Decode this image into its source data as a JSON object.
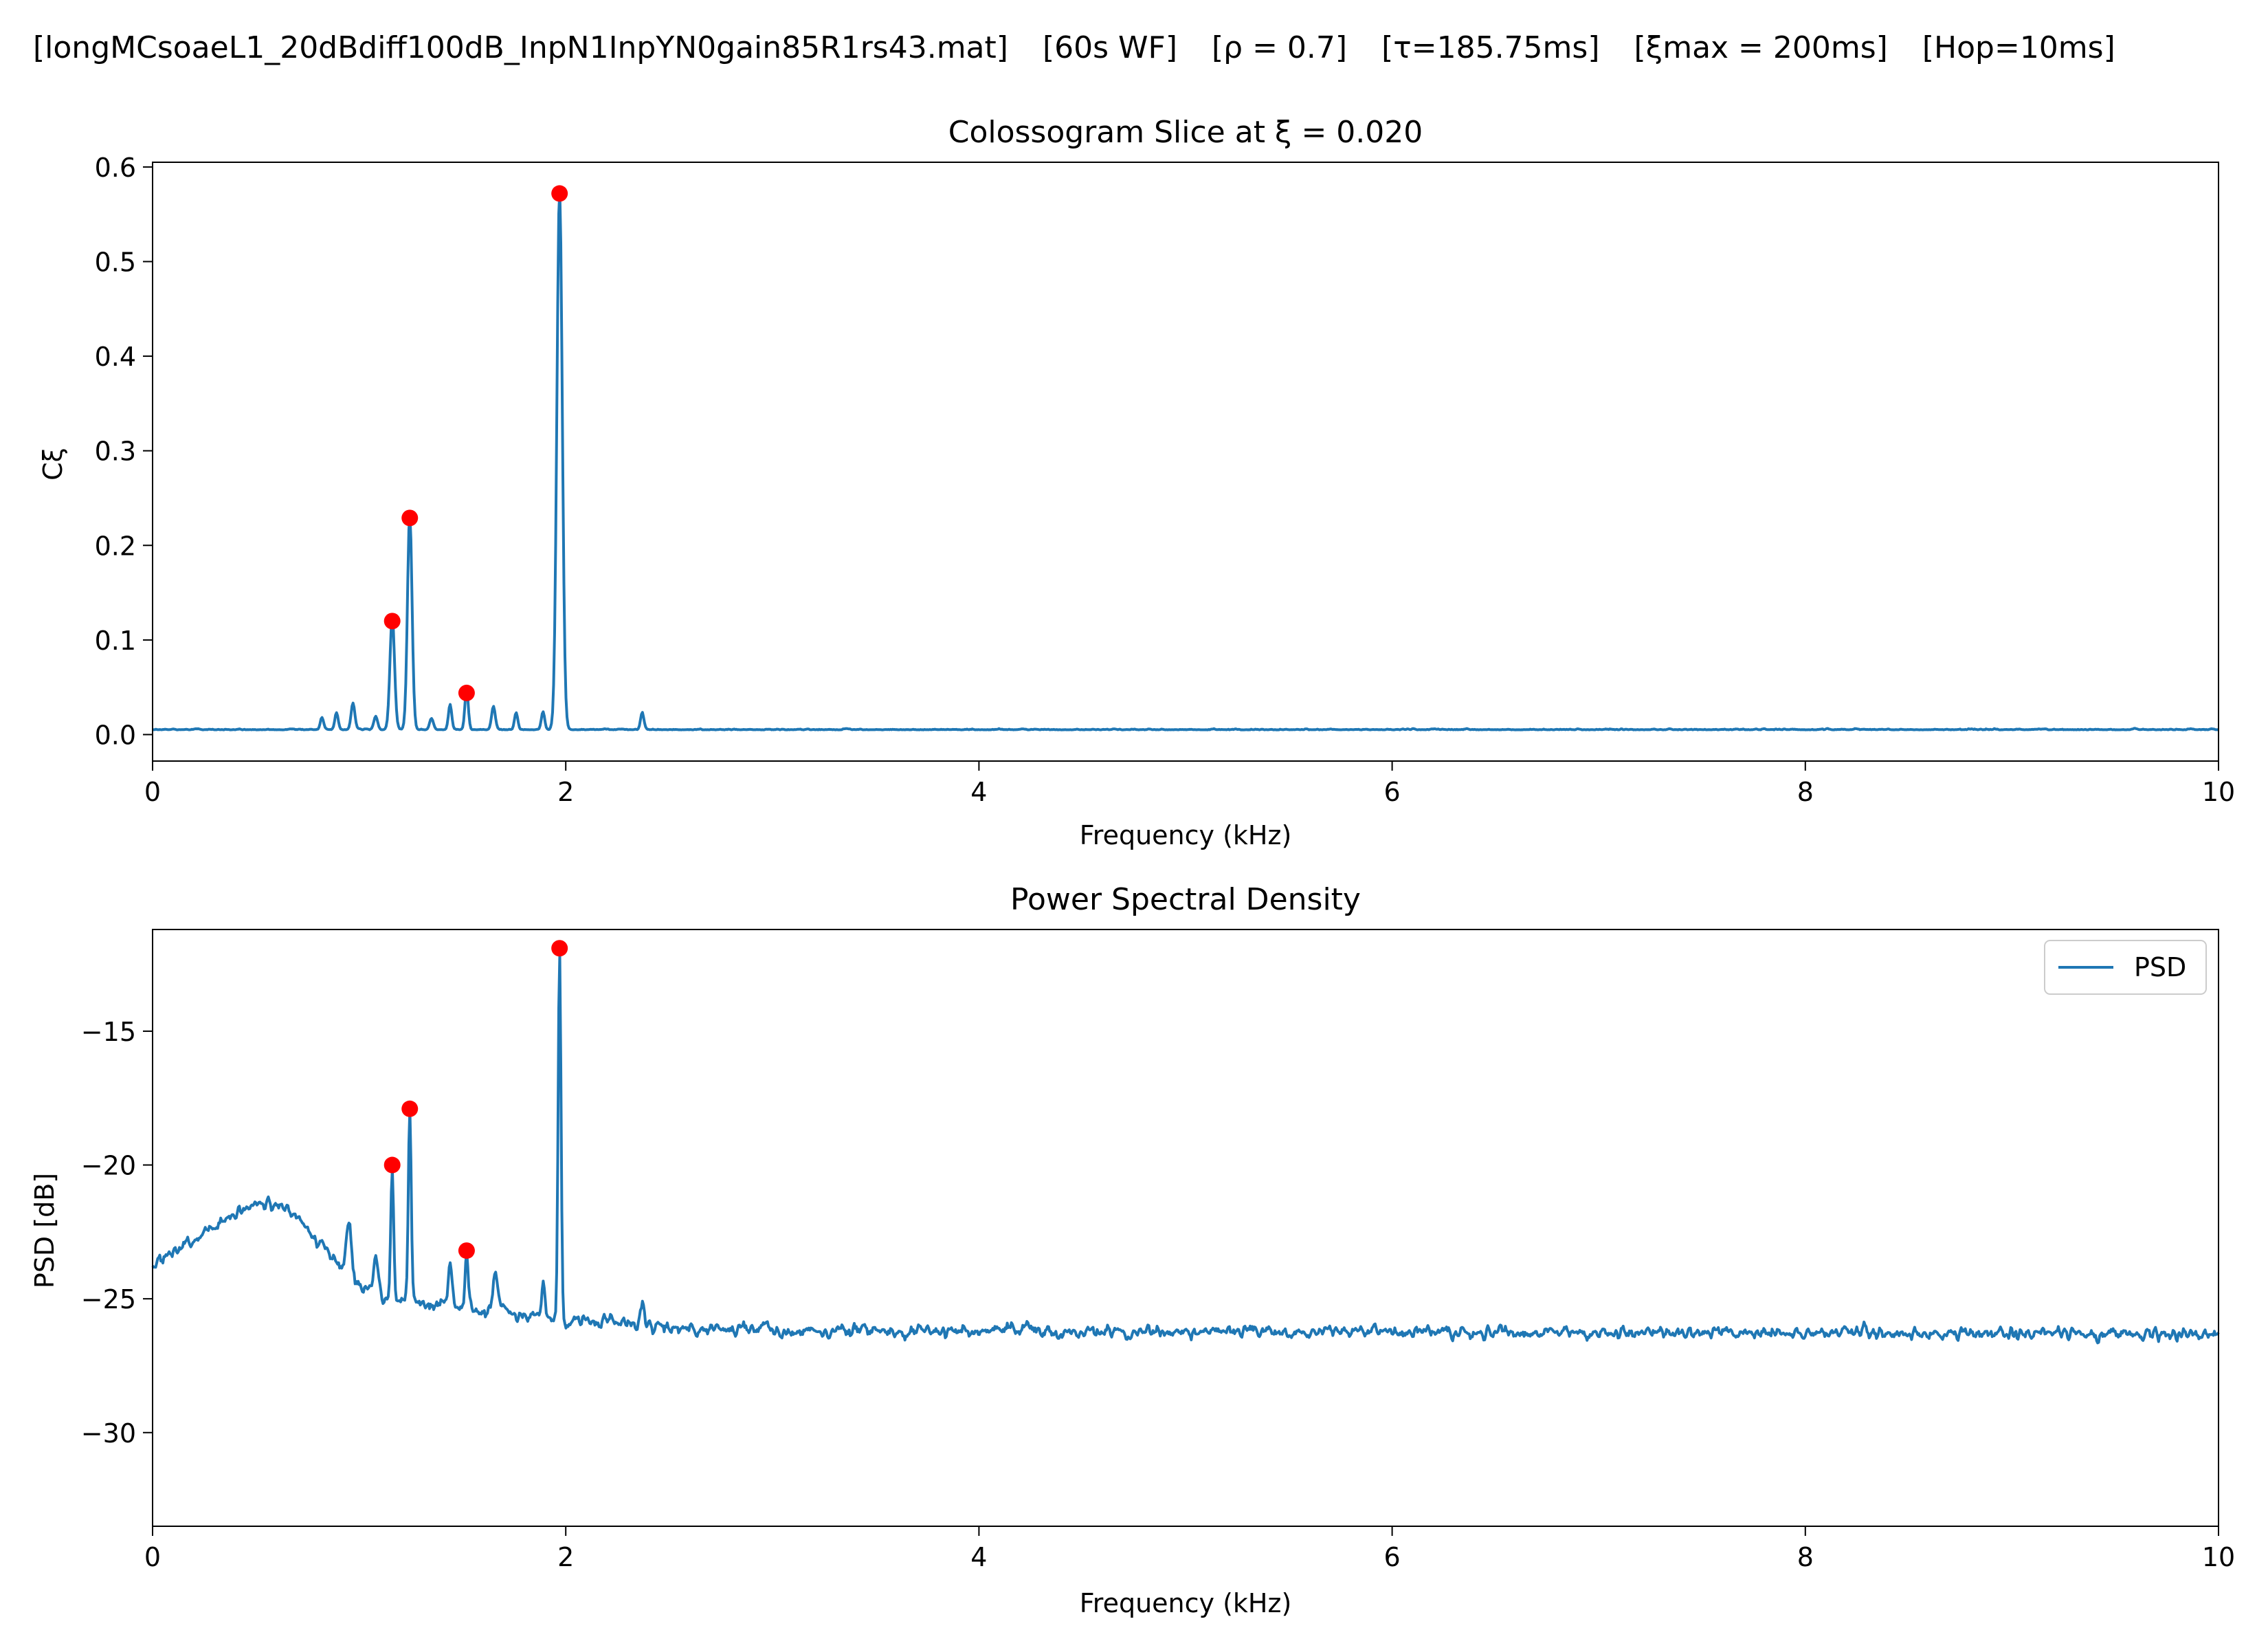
{
  "figure": {
    "suptitle_parts": [
      {
        "text": "[longMCsoaeL1_20dBdiff100dB_InpN1InpYN0gain85R1rs43.mat]"
      },
      {
        "text": "[60s WF]"
      },
      {
        "text": "[ρ = 0.7]"
      },
      {
        "text": "[τ=185.75ms]"
      },
      {
        "text": "[ξmax = 200ms]"
      },
      {
        "text": "[Hop=10ms]"
      }
    ]
  },
  "chart_data": [
    {
      "type": "line",
      "title": "Colossogram Slice at ξ = 0.020",
      "xlabel": "Frequency (kHz)",
      "ylabel": "Cξ",
      "xlim": [
        0,
        10
      ],
      "ylim": [
        -0.028,
        0.605
      ],
      "xticks": [
        0,
        2,
        4,
        6,
        8,
        10
      ],
      "yticks": [
        0.0,
        0.1,
        0.2,
        0.3,
        0.4,
        0.5,
        0.6
      ],
      "ytick_labels": [
        "0.0",
        "0.1",
        "0.2",
        "0.3",
        "0.4",
        "0.5",
        "0.6"
      ],
      "baseline": 0.005,
      "noise": 0.002,
      "features": [
        [
          0.82,
          0.013,
          0.008
        ],
        [
          0.89,
          0.018,
          0.008
        ],
        [
          0.97,
          0.028,
          0.009
        ],
        [
          1.08,
          0.014,
          0.009
        ],
        [
          1.16,
          0.12,
          0.011
        ],
        [
          1.245,
          0.229,
          0.011
        ],
        [
          1.35,
          0.011,
          0.009
        ],
        [
          1.44,
          0.027,
          0.008
        ],
        [
          1.52,
          0.044,
          0.008
        ],
        [
          1.65,
          0.024,
          0.009
        ],
        [
          1.76,
          0.018,
          0.008
        ],
        [
          1.89,
          0.019,
          0.008
        ],
        [
          1.97,
          0.572,
          0.013
        ],
        [
          2.37,
          0.017,
          0.008
        ]
      ],
      "peaks": {
        "x": [
          1.16,
          1.245,
          1.52,
          1.97
        ],
        "y": [
          0.12,
          0.229,
          0.044,
          0.572
        ]
      },
      "line_color": "#1f77b4",
      "peak_color": "#ff0000",
      "grid": false
    },
    {
      "type": "line",
      "title": "Power Spectral Density",
      "xlabel": "Frequency (kHz)",
      "ylabel": "PSD [dB]",
      "xlim": [
        0,
        10
      ],
      "ylim": [
        -33.5,
        -11.2
      ],
      "xticks": [
        0,
        2,
        4,
        6,
        8,
        10
      ],
      "yticks": [
        -30,
        -25,
        -20,
        -15
      ],
      "ytick_labels": [
        "−30",
        "−25",
        "−20",
        "−15"
      ],
      "envelope": [
        [
          0,
          -23.8
        ],
        [
          0.5,
          -21.4
        ],
        [
          0.65,
          -21.6
        ],
        [
          0.85,
          -23.3
        ],
        [
          1.0,
          -24.5
        ],
        [
          1.1,
          -25.0
        ],
        [
          1.5,
          -25.3
        ],
        [
          2.0,
          -25.8
        ],
        [
          2.6,
          -26.1
        ],
        [
          3.2,
          -26.2
        ],
        [
          10,
          -26.3
        ]
      ],
      "noise": 0.38,
      "features": [
        [
          0.95,
          2.0,
          0.012
        ],
        [
          1.08,
          1.6,
          0.012
        ],
        [
          1.16,
          5.0,
          0.007
        ],
        [
          1.245,
          7.1,
          0.007
        ],
        [
          1.44,
          1.5,
          0.01
        ],
        [
          1.52,
          2.1,
          0.007
        ],
        [
          1.66,
          1.6,
          0.01
        ],
        [
          1.89,
          1.2,
          0.008
        ],
        [
          1.97,
          13.8,
          0.007
        ],
        [
          2.37,
          0.9,
          0.01
        ]
      ],
      "peaks": {
        "x": [
          1.16,
          1.245,
          1.52,
          1.97
        ],
        "y": [
          -20.0,
          -17.9,
          -23.2,
          -11.9
        ]
      },
      "legend": {
        "label": "PSD",
        "placement": "top-right"
      },
      "line_color": "#1f77b4",
      "peak_color": "#ff0000",
      "grid": false
    }
  ]
}
